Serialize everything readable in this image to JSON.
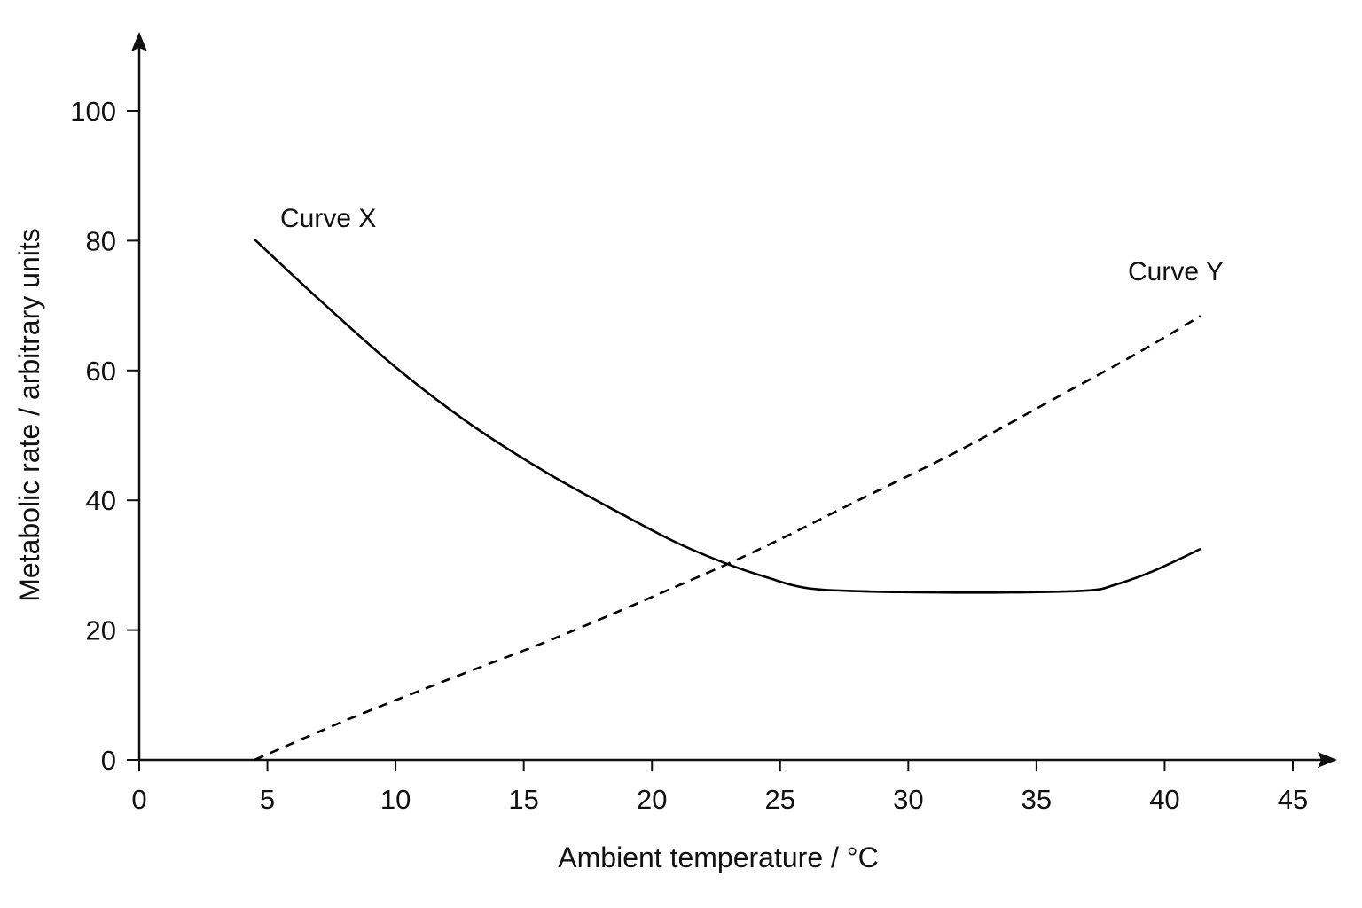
{
  "chart_data": {
    "type": "line",
    "title": "",
    "xlabel": "Ambient temperature / °C",
    "ylabel": "Metabolic rate / arbitrary units",
    "xlim": [
      0,
      45
    ],
    "ylim": [
      0,
      100
    ],
    "x_ticks": [
      0,
      5,
      10,
      15,
      20,
      25,
      30,
      35,
      40,
      45
    ],
    "y_ticks": [
      0,
      20,
      40,
      60,
      80,
      100
    ],
    "grid": false,
    "legend": "none",
    "series": [
      {
        "name": "Curve X",
        "style": "solid",
        "color": "#000000",
        "x": [
          4.5,
          7,
          10,
          13,
          16,
          19,
          21,
          23,
          24.5,
          26,
          28,
          31,
          34,
          37,
          38,
          39.5,
          41.4
        ],
        "y": [
          80.2,
          71,
          60.5,
          51.5,
          44,
          37.5,
          33.4,
          30.1,
          28.1,
          26.5,
          26,
          25.8,
          25.8,
          26.1,
          26.9,
          29,
          32.5
        ]
      },
      {
        "name": "Curve Y",
        "style": "dashed",
        "color": "#000000",
        "x": [
          4.5,
          8,
          12,
          16,
          20,
          24,
          28,
          32,
          36,
          39,
          41.4
        ],
        "y": [
          0,
          6,
          12.3,
          18.4,
          25.1,
          32.1,
          39.9,
          47.7,
          56.3,
          62.8,
          68.4
        ]
      }
    ]
  }
}
